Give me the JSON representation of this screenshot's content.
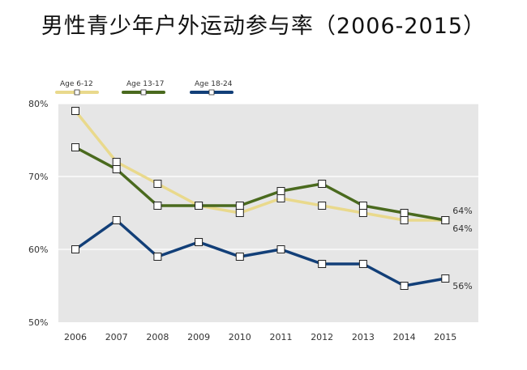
{
  "title": "男性青少年户外运动参与率（2006-2015）",
  "chart_data": {
    "type": "line",
    "title": "男性青少年户外运动参与率（2006-2015）",
    "x": [
      "2006",
      "2007",
      "2008",
      "2009",
      "2010",
      "2011",
      "2012",
      "2013",
      "2014",
      "2015"
    ],
    "ylim": [
      50,
      80
    ],
    "y_ticks": [
      "80%",
      "70%",
      "60%",
      "50%"
    ],
    "grid": true,
    "legend_position": "top-left",
    "series": [
      {
        "name": "Age 6-12",
        "color": "#e9d98c",
        "values": [
          79,
          72,
          69,
          66,
          65,
          67,
          66,
          65,
          64,
          64
        ],
        "end_label": "64%"
      },
      {
        "name": "Age 13-17",
        "color": "#4a6a1e",
        "values": [
          74,
          71,
          66,
          66,
          66,
          68,
          69,
          66,
          65,
          64
        ],
        "end_label": "64%"
      },
      {
        "name": "Age 18-24",
        "color": "#123f78",
        "values": [
          60,
          64,
          59,
          61,
          59,
          60,
          58,
          58,
          55,
          56
        ],
        "end_label": "56%"
      }
    ]
  }
}
